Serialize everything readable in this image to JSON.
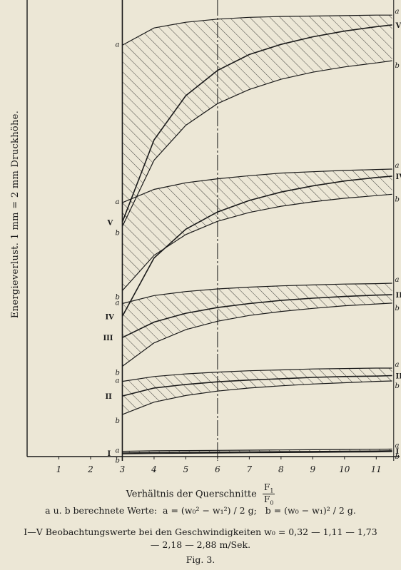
{
  "ylabel": "Energieverlust. 1 mm = 2 mm Druckhöhe.",
  "xlabel": "Verhältnis der Querschnitte",
  "xlabel_frac_num": "F",
  "xlabel_frac_num_sub": "1",
  "xlabel_frac_den": "F",
  "xlabel_frac_den_sub": "0",
  "caption_line1_prefix": "a u. b berechnete Werte:",
  "formula_a": "a = (w₀² − w₁²) / 2 g;",
  "formula_b": "b = (w₀ − w₁)² / 2 g.",
  "caption_line2": "I—V Beobachtungswerte bei den Geschwindigkeiten w₀ = 0,32 — 1,11 — 1,73",
  "caption_line3": "— 2,18 — 2,88 m/Sek.",
  "fig_label": "Fig. 3.",
  "colors": {
    "ink": "#1a1a1a",
    "paper": "#ece7d6"
  },
  "chart_data": {
    "type": "line",
    "x_ticks": [
      "1",
      "2",
      "3",
      "4",
      "5",
      "6",
      "7",
      "8",
      "9",
      "10",
      "11"
    ],
    "xlim": [
      0,
      11.6
    ],
    "ylim": [
      0,
      100
    ],
    "grid": false,
    "reference_lines_x": [
      3,
      6,
      11.55
    ],
    "x": [
      3,
      4,
      5,
      6,
      7,
      8,
      9,
      10,
      11,
      11.5
    ],
    "bands": [
      {
        "name": "I",
        "a": [
          1.2,
          1.3,
          1.35,
          1.4,
          1.45,
          1.5,
          1.55,
          1.6,
          1.65,
          1.7
        ],
        "b": [
          0.6,
          0.7,
          0.75,
          0.8,
          0.85,
          0.9,
          0.95,
          1.0,
          1.05,
          1.1
        ],
        "observed": [
          0.8,
          0.9,
          0.95,
          1.0,
          1.05,
          1.1,
          1.15,
          1.2,
          1.25,
          1.3
        ]
      },
      {
        "name": "II",
        "a": [
          17.0,
          18.1,
          18.7,
          19.1,
          19.4,
          19.6,
          19.8,
          19.9,
          20.0,
          20.0
        ],
        "b": [
          9.5,
          12.3,
          13.8,
          14.8,
          15.5,
          16.0,
          16.4,
          16.7,
          17.0,
          17.1
        ],
        "observed": [
          13.7,
          15.5,
          16.3,
          16.9,
          17.3,
          17.6,
          17.9,
          18.1,
          18.2,
          18.3
        ]
      },
      {
        "name": "III",
        "a": [
          34.6,
          36.4,
          37.3,
          37.9,
          38.3,
          38.6,
          38.8,
          39.0,
          39.1,
          39.2
        ],
        "b": [
          20.4,
          25.7,
          28.7,
          30.6,
          31.9,
          32.8,
          33.5,
          34.1,
          34.5,
          34.7
        ],
        "observed": [
          26.9,
          30.4,
          32.4,
          33.7,
          34.6,
          35.3,
          35.8,
          36.2,
          36.5,
          36.6
        ]
      },
      {
        "name": "IV",
        "a": [
          57.4,
          60.4,
          61.9,
          62.8,
          63.5,
          64.1,
          64.4,
          64.7,
          64.9,
          65.0
        ],
        "b": [
          37.5,
          45.5,
          50.2,
          53.2,
          55.2,
          56.6,
          57.6,
          58.4,
          59.0,
          59.3
        ],
        "observed": [
          31.7,
          44.9,
          51.4,
          55.3,
          57.9,
          59.8,
          61.2,
          62.3,
          63.1,
          63.4
        ]
      },
      {
        "name": "V",
        "a": [
          93.0,
          96.9,
          98.2,
          98.9,
          99.3,
          99.5,
          99.6,
          99.7,
          99.8,
          99.8
        ],
        "b": [
          52.0,
          67.0,
          74.9,
          79.8,
          83.0,
          85.3,
          86.9,
          88.1,
          89.0,
          89.5
        ],
        "observed": [
          53.0,
          71.6,
          81.6,
          87.3,
          90.9,
          93.2,
          94.9,
          96.2,
          97.2,
          97.6
        ]
      }
    ]
  }
}
